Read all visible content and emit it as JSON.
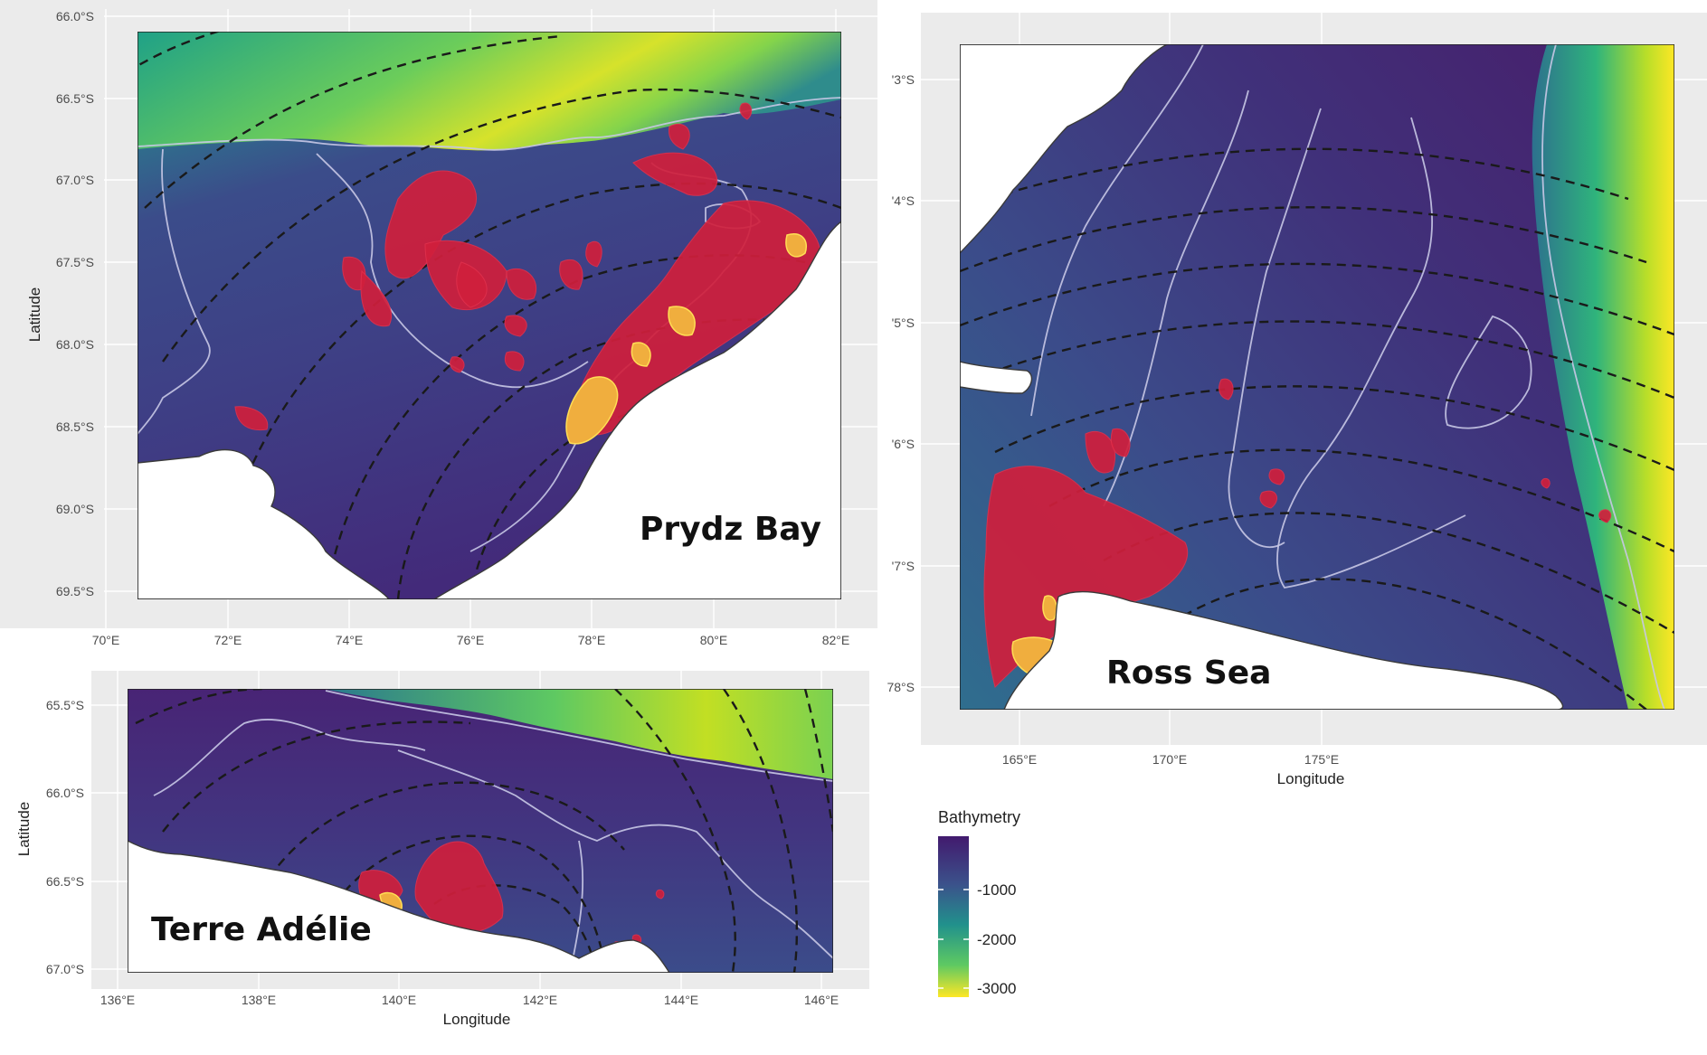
{
  "panels": {
    "prydz": {
      "label": "Prydz Bay",
      "y_ticks": [
        "66.0°S",
        "66.5°S",
        "67.0°S",
        "67.5°S",
        "68.0°S",
        "68.5°S",
        "69.0°S",
        "69.5°S"
      ],
      "x_ticks": [
        "70°E",
        "72°E",
        "74°E",
        "76°E",
        "78°E",
        "80°E",
        "82°E"
      ],
      "y_label": "Latitude"
    },
    "ross": {
      "label": "Ross Sea",
      "y_ticks": [
        "'3°S",
        "'4°S",
        "'5°S",
        "'6°S",
        "'7°S",
        "78°S"
      ],
      "x_ticks": [
        "165°E",
        "170°E",
        "175°E"
      ],
      "x_label": "Longitude"
    },
    "adelie": {
      "label": "Terre Adélie",
      "y_ticks": [
        "65.5°S",
        "66.0°S",
        "66.5°S",
        "67.0°S"
      ],
      "x_ticks": [
        "136°E",
        "138°E",
        "140°E",
        "142°E",
        "144°E",
        "146°E"
      ],
      "x_label": "Longitude",
      "y_label": "Latitude"
    }
  },
  "legend": {
    "title": "Bathymetry",
    "ticks": [
      "-1000",
      "-2000",
      "-3000"
    ],
    "colors": [
      "#421a6e",
      "#2a788e",
      "#22a884",
      "#7ad151",
      "#fde725"
    ]
  }
}
